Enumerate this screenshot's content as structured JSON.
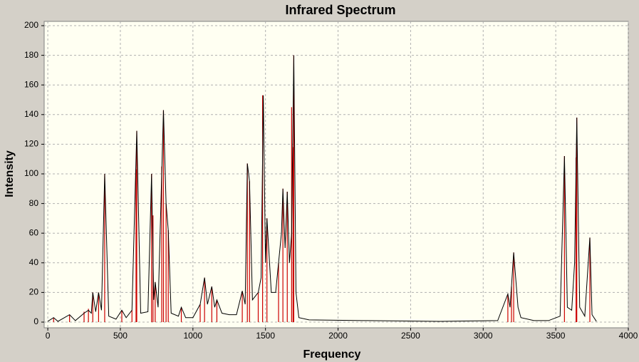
{
  "chart_data": {
    "type": "spectrum",
    "title": "Infrared Spectrum",
    "x_label": "Frequency",
    "y_label": "Intensity",
    "xlim": [
      -25,
      4000
    ],
    "ylim": [
      0,
      200
    ],
    "xticks": [
      0,
      500,
      1000,
      1500,
      2000,
      2500,
      3000,
      3500,
      4000
    ],
    "yticks": [
      0,
      20,
      40,
      60,
      80,
      100,
      120,
      140,
      160,
      180,
      200
    ],
    "grid": true,
    "series": [
      {
        "style": "stick",
        "color": "#cc0000",
        "x": [
          40,
          150,
          250,
          280,
          310,
          350,
          392,
          510,
          580,
          608,
          613,
          715,
          725,
          740,
          785,
          797,
          815,
          830,
          920,
          1050,
          1080,
          1130,
          1165,
          1340,
          1375,
          1390,
          1450,
          1480,
          1510,
          1590,
          1620,
          1650,
          1680,
          1690,
          1695,
          3170,
          3195,
          3210,
          3560,
          3640,
          3645,
          3735
        ],
        "values": [
          3,
          5,
          7,
          9,
          20,
          20,
          100,
          8,
          8,
          103,
          129,
          100,
          72,
          27,
          105,
          143,
          80,
          62,
          10,
          12,
          30,
          24,
          15,
          21,
          107,
          95,
          20,
          153,
          70,
          40,
          90,
          88,
          145,
          118,
          180,
          19,
          24,
          47,
          112,
          111,
          138,
          57
        ]
      },
      {
        "style": "line",
        "color": "#000000",
        "x": [
          0,
          40,
          70,
          150,
          190,
          250,
          280,
          300,
          310,
          330,
          350,
          370,
          392,
          420,
          470,
          510,
          540,
          580,
          613,
          640,
          690,
          715,
          730,
          740,
          760,
          797,
          815,
          830,
          850,
          900,
          920,
          950,
          1000,
          1050,
          1080,
          1100,
          1130,
          1150,
          1165,
          1200,
          1250,
          1300,
          1340,
          1360,
          1375,
          1390,
          1410,
          1450,
          1470,
          1485,
          1500,
          1510,
          1540,
          1570,
          1590,
          1610,
          1620,
          1635,
          1650,
          1665,
          1680,
          1695,
          1710,
          1730,
          1800,
          2200,
          2700,
          3100,
          3170,
          3185,
          3195,
          3210,
          3240,
          3260,
          3350,
          3450,
          3530,
          3560,
          3580,
          3610,
          3630,
          3645,
          3665,
          3700,
          3735,
          3750,
          3780
        ],
        "values": [
          0.5,
          3,
          0.5,
          5,
          1,
          6,
          8,
          6,
          20,
          7,
          20,
          8,
          100,
          4,
          2,
          8,
          3,
          8,
          129,
          6,
          7,
          100,
          15,
          27,
          10,
          143,
          80,
          62,
          6,
          4,
          10,
          3,
          3,
          12,
          30,
          12,
          24,
          10,
          15,
          6,
          5,
          5,
          21,
          12,
          107,
          95,
          15,
          20,
          30,
          153,
          40,
          70,
          20,
          20,
          40,
          60,
          90,
          50,
          88,
          40,
          60,
          180,
          20,
          3,
          1.5,
          1,
          0.5,
          1,
          19,
          10,
          24,
          47,
          10,
          3,
          1,
          1,
          4,
          112,
          10,
          8,
          40,
          138,
          10,
          4,
          57,
          5,
          0.5
        ]
      }
    ]
  }
}
